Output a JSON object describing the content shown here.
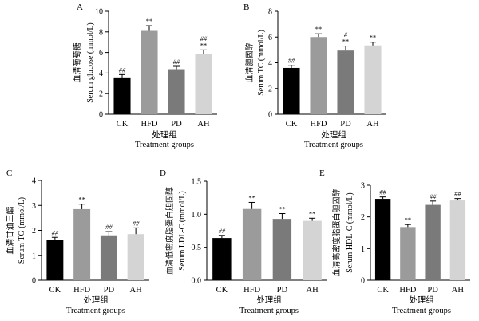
{
  "chart_data": [
    {
      "type": "bar",
      "panel": "A",
      "categories": [
        "CK",
        "HFD",
        "PD",
        "AH"
      ],
      "values": [
        3.5,
        8.1,
        4.3,
        5.85
      ],
      "errors": [
        0.35,
        0.5,
        0.35,
        0.4
      ],
      "significance": [
        "##",
        "**",
        "##",
        "##\n**"
      ],
      "ylim": [
        0,
        10
      ],
      "yticks": [
        0,
        2,
        4,
        6,
        8,
        10
      ],
      "ylabel_cn": "血清葡萄糖",
      "ylabel": "Serum glucose (mmol/L)",
      "xlabel_cn": "处理组",
      "xlabel": "Treatment groups",
      "colors": [
        "#000000",
        "#9b9b9b",
        "#7a7a7a",
        "#d4d4d4"
      ]
    },
    {
      "type": "bar",
      "panel": "B",
      "categories": [
        "CK",
        "HFD",
        "PD",
        "AH"
      ],
      "values": [
        3.6,
        6.0,
        4.95,
        5.35
      ],
      "errors": [
        0.2,
        0.25,
        0.35,
        0.25
      ],
      "significance": [
        "##",
        "**",
        "#\n**",
        "**"
      ],
      "ylim": [
        0,
        8
      ],
      "yticks": [
        0,
        2,
        4,
        6,
        8
      ],
      "ylabel_cn": "血清胆固醇",
      "ylabel": "Serum TC (mmol/L)",
      "xlabel_cn": "处理组",
      "xlabel": "Treatment groups",
      "colors": [
        "#000000",
        "#9b9b9b",
        "#7a7a7a",
        "#d4d4d4"
      ]
    },
    {
      "type": "bar",
      "panel": "C",
      "categories": [
        "CK",
        "HFD",
        "PD",
        "AH"
      ],
      "values": [
        1.6,
        2.85,
        1.8,
        1.85
      ],
      "errors": [
        0.12,
        0.2,
        0.15,
        0.25
      ],
      "significance": [
        "##",
        "**",
        "##",
        "##"
      ],
      "ylim": [
        0,
        4
      ],
      "yticks": [
        0,
        1,
        2,
        3,
        4
      ],
      "ylabel_cn": "血清甘油三酯",
      "ylabel": "Serum TG (mmol/L)",
      "xlabel_cn": "处理组",
      "xlabel": "Treatment groups",
      "colors": [
        "#000000",
        "#9b9b9b",
        "#7a7a7a",
        "#d4d4d4"
      ]
    },
    {
      "type": "bar",
      "panel": "D",
      "categories": [
        "CK",
        "HFD",
        "PD",
        "AH"
      ],
      "values": [
        0.64,
        1.08,
        0.93,
        0.9
      ],
      "errors": [
        0.04,
        0.1,
        0.08,
        0.04
      ],
      "significance": [
        "##",
        "**",
        "**",
        "**"
      ],
      "ylim": [
        0,
        1.5
      ],
      "yticks": [
        0.0,
        0.5,
        1.0,
        1.5
      ],
      "ytick_labels": [
        "0.0",
        "0.5",
        "1.0",
        "1.5"
      ],
      "ylabel_cn": "血清低密度脂蛋白胆固醇",
      "ylabel": "Serum LDL-C (mmol/L)",
      "xlabel_cn": "处理组",
      "xlabel": "Treatment groups",
      "colors": [
        "#000000",
        "#9b9b9b",
        "#7a7a7a",
        "#d4d4d4"
      ]
    },
    {
      "type": "bar",
      "panel": "E",
      "categories": [
        "CK",
        "HFD",
        "PD",
        "AH"
      ],
      "values": [
        2.57,
        1.68,
        2.38,
        2.52
      ],
      "errors": [
        0.06,
        0.08,
        0.12,
        0.06
      ],
      "significance": [
        "##",
        "**",
        "##",
        "##"
      ],
      "ylim": [
        0,
        3
      ],
      "yticks": [
        0,
        1,
        2,
        3
      ],
      "ylabel_cn": "血清高密度脂蛋白胆固醇",
      "ylabel": "Serum HDL-C (mmol/L)",
      "xlabel_cn": "处理组",
      "xlabel": "Treatment groups",
      "colors": [
        "#000000",
        "#9b9b9b",
        "#7a7a7a",
        "#d4d4d4"
      ]
    }
  ]
}
